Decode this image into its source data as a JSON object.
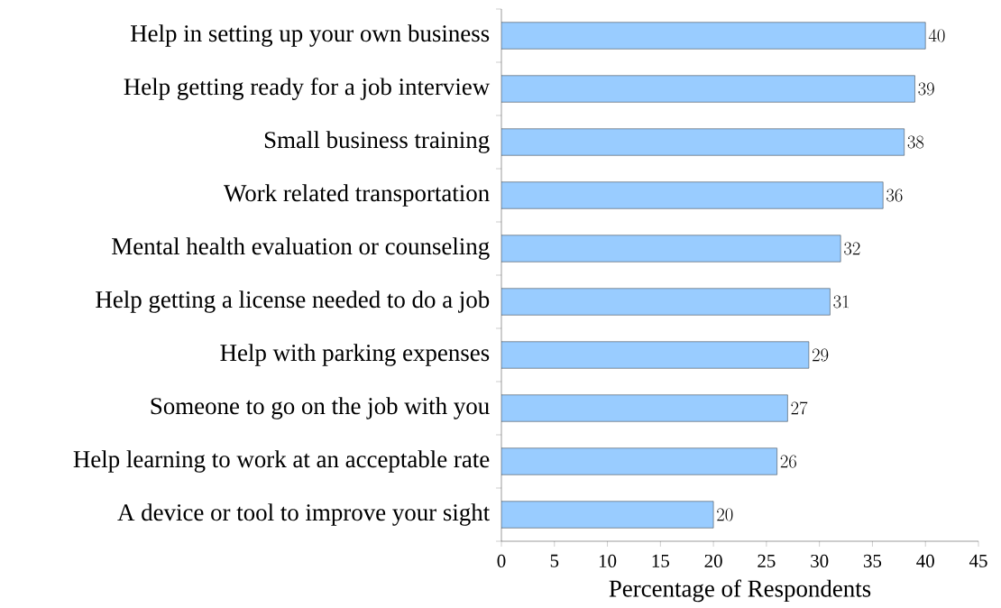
{
  "chart_data": {
    "type": "bar",
    "orientation": "horizontal",
    "xlabel": "Percentage of Respondents",
    "categories": [
      "Help in setting up your own business",
      "Help getting ready for a job interview",
      "Small business training",
      "Work related transportation",
      "Mental health evaluation or counseling",
      "Help getting a license needed to do a job",
      "Help with parking expenses",
      "Someone to go on the job with you",
      "Help learning to work at an acceptable rate",
      "A device or tool to improve your sight"
    ],
    "values": [
      40,
      39,
      38,
      36,
      32,
      31,
      29,
      27,
      26,
      20
    ],
    "color": "#99ccff",
    "data_labels": true,
    "xlim": [
      0,
      45
    ],
    "xticks": [
      0,
      5,
      10,
      15,
      20,
      25,
      30,
      35,
      40,
      45
    ]
  }
}
